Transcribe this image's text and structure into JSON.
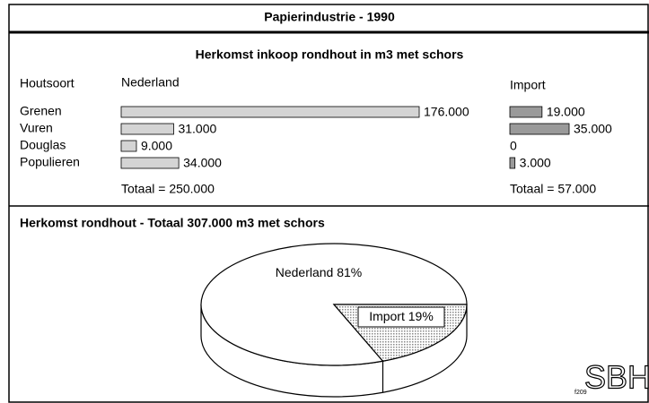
{
  "header": {
    "title": "Papierindustrie - 1990",
    "subtitle": "Herkomst inkoop rondhout in m3 met schors",
    "row_header": "Houtsoort"
  },
  "chart_data": [
    {
      "type": "hbar",
      "title": "Nederland",
      "categories": [
        "Grenen",
        "Vuren",
        "Douglas",
        "Populieren"
      ],
      "values": [
        176000,
        31000,
        9000,
        34000
      ],
      "value_labels": [
        "176.000",
        "31.000",
        "9.000",
        "34.000"
      ],
      "total_label": "Totaal = 250.000",
      "color": "#d4d4d4"
    },
    {
      "type": "hbar",
      "title": "Import",
      "values": [
        19000,
        35000,
        0,
        3000
      ],
      "value_labels": [
        "19.000",
        "35.000",
        "0",
        "3.000"
      ],
      "total_label": "Totaal = 57.000",
      "color": "#9a9a9a"
    },
    {
      "type": "pie",
      "title": "Herkomst rondhout  -  Totaal 307.000 m3 met schors",
      "categories": [
        "Nederland",
        "Import"
      ],
      "values": [
        81,
        19
      ],
      "value_labels": [
        "81%",
        "19%"
      ],
      "colors": [
        "#ffffff",
        "#b8b8b8"
      ]
    }
  ],
  "footer": {
    "code": "f209",
    "logo": "SBH"
  }
}
